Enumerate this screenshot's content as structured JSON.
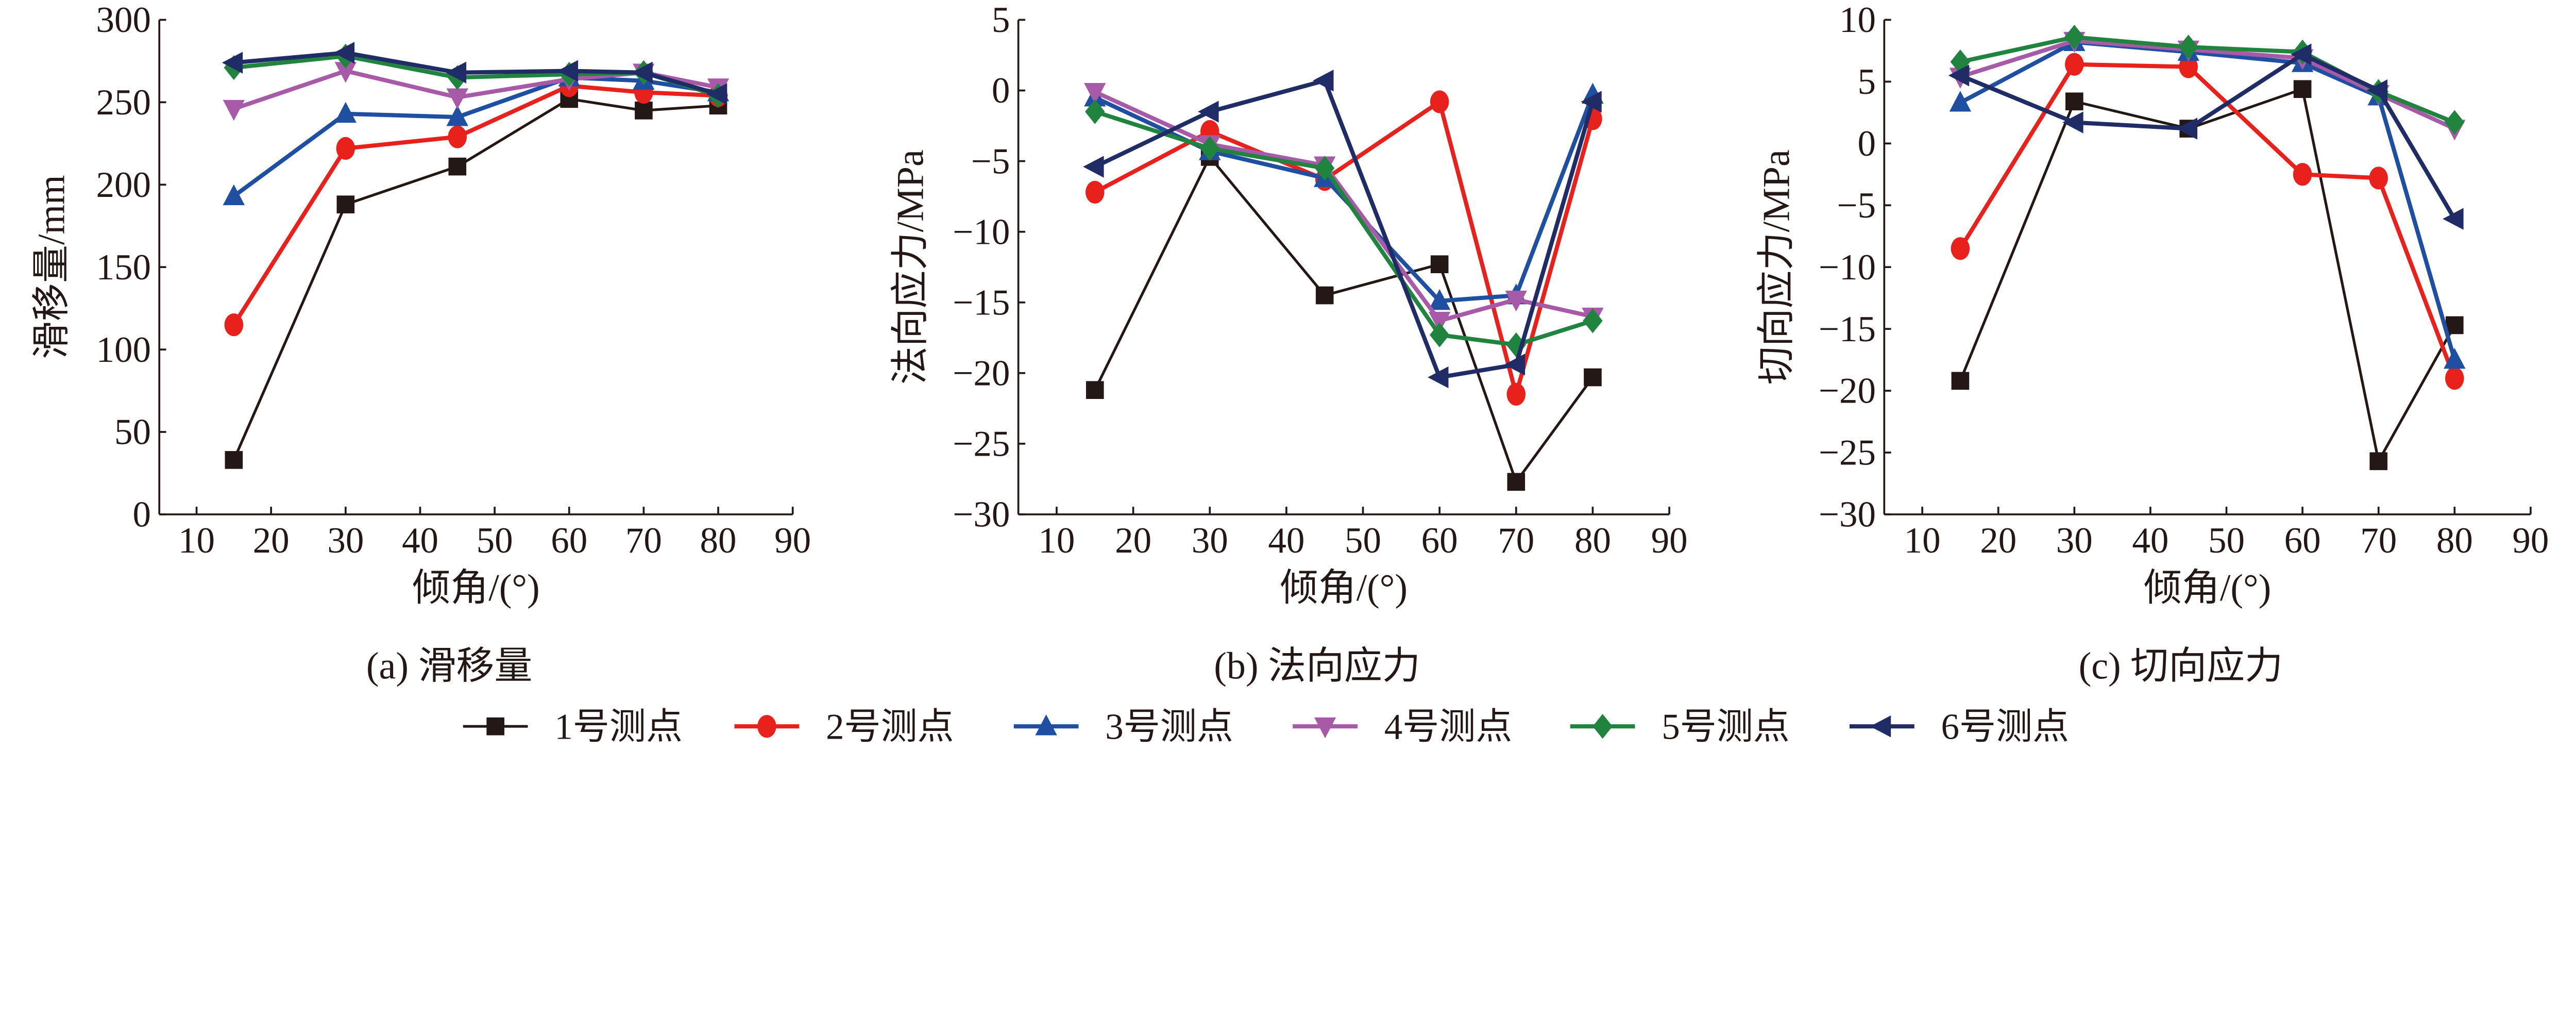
{
  "colors": {
    "1号测点": "#231815",
    "2号测点": "#e8211d",
    "3号测点": "#1e4fa0",
    "4号测点": "#a75aa8",
    "5号测点": "#20843f",
    "6号测点": "#202c66"
  },
  "markers": {
    "1号测点": "square",
    "2号测点": "circle",
    "3号测点": "triangle-up",
    "4号测点": "triangle-down",
    "5号测点": "diamond",
    "6号测点": "triangle-left"
  },
  "legend": {
    "placement": "bottom",
    "items": [
      "1号测点",
      "2号测点",
      "3号测点",
      "4号测点",
      "5号测点",
      "6号测点"
    ]
  },
  "chart_data": [
    {
      "type": "line",
      "caption": "(a)  滑移量",
      "xlabel": "倾角/(°)",
      "ylabel": "滑移量/mm",
      "xlim": [
        5,
        90
      ],
      "ylim": [
        0,
        300
      ],
      "xticks": [
        10,
        20,
        30,
        40,
        50,
        60,
        70,
        80,
        90
      ],
      "yticks": [
        0,
        50,
        100,
        150,
        200,
        250,
        300
      ],
      "grid": false,
      "x": [
        15,
        30,
        45,
        60,
        70,
        80
      ],
      "series": [
        {
          "name": "1号测点",
          "values": [
            33,
            188,
            211,
            252,
            245,
            248
          ]
        },
        {
          "name": "2号测点",
          "values": [
            115,
            222,
            229,
            260,
            256,
            254
          ]
        },
        {
          "name": "3号测点",
          "values": [
            193,
            243,
            241,
            265,
            263,
            256
          ]
        },
        {
          "name": "4号测点",
          "values": [
            246,
            269,
            253,
            264,
            268,
            259
          ]
        },
        {
          "name": "5号测点",
          "values": [
            271,
            278,
            265,
            267,
            268,
            254
          ]
        },
        {
          "name": "6号测点",
          "values": [
            274,
            280,
            268,
            269,
            268,
            255
          ]
        }
      ]
    },
    {
      "type": "line",
      "caption": "(b)  法向应力",
      "xlabel": "倾角/(°)",
      "ylabel": "法向应力/MPa",
      "xlim": [
        5,
        90
      ],
      "ylim": [
        -30,
        5
      ],
      "xticks": [
        10,
        20,
        30,
        40,
        50,
        60,
        70,
        80,
        90
      ],
      "yticks": [
        -30,
        -25,
        -20,
        -15,
        -10,
        -5,
        0,
        5
      ],
      "grid": false,
      "x": [
        15,
        30,
        45,
        60,
        70,
        80
      ],
      "series": [
        {
          "name": "1号测点",
          "values": [
            -21.2,
            -4.7,
            -14.5,
            -12.3,
            -27.7,
            -20.3
          ]
        },
        {
          "name": "2号测点",
          "values": [
            -7.2,
            -2.9,
            -6.3,
            -0.8,
            -21.5,
            -2.0
          ]
        },
        {
          "name": "3号测点",
          "values": [
            -0.5,
            -4.3,
            -6.2,
            -14.9,
            -14.5,
            -0.3
          ]
        },
        {
          "name": "4号测点",
          "values": [
            -0.1,
            -3.8,
            -5.3,
            -16.3,
            -14.8,
            -16.0
          ]
        },
        {
          "name": "5号测点",
          "values": [
            -1.5,
            -4.1,
            -5.5,
            -17.3,
            -18.0,
            -16.3
          ]
        },
        {
          "name": "6号测点",
          "values": [
            -5.4,
            -1.5,
            0.7,
            -20.3,
            -19.4,
            -0.8
          ]
        }
      ]
    },
    {
      "type": "line",
      "caption": "(c)  切向应力",
      "xlabel": "倾角/(°)",
      "ylabel": "切向应力/MPa",
      "xlim": [
        5,
        90
      ],
      "ylim": [
        -30,
        10
      ],
      "xticks": [
        10,
        20,
        30,
        40,
        50,
        60,
        70,
        80,
        90
      ],
      "yticks": [
        -30,
        -25,
        -20,
        -15,
        -10,
        -5,
        0,
        5,
        10
      ],
      "grid": false,
      "x": [
        15,
        30,
        45,
        60,
        70,
        80
      ],
      "series": [
        {
          "name": "1号测点",
          "values": [
            -19.2,
            3.4,
            1.2,
            4.4,
            -25.7,
            -14.7
          ]
        },
        {
          "name": "2号测点",
          "values": [
            -8.5,
            6.4,
            6.2,
            -2.5,
            -2.8,
            -19.0
          ]
        },
        {
          "name": "3号测点",
          "values": [
            3.3,
            8.2,
            7.4,
            6.5,
            3.8,
            -17.5
          ]
        },
        {
          "name": "4号测点",
          "values": [
            5.4,
            8.3,
            7.6,
            6.9,
            4.0,
            1.2
          ]
        },
        {
          "name": "5号测点",
          "values": [
            6.6,
            8.6,
            7.8,
            7.4,
            4.2,
            1.7
          ]
        },
        {
          "name": "6号测点",
          "values": [
            5.5,
            1.7,
            1.2,
            7.2,
            4.3,
            -6.1
          ]
        }
      ]
    }
  ]
}
